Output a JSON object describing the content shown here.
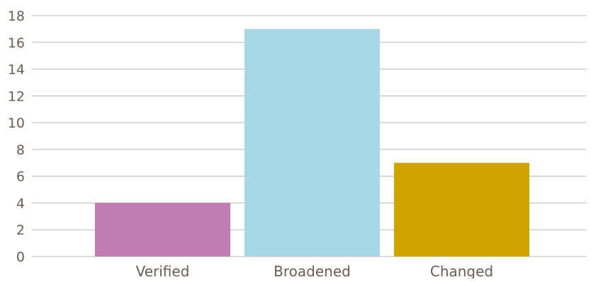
{
  "chart_data": {
    "type": "bar",
    "categories": [
      "Verified",
      "Broadened",
      "Changed"
    ],
    "values": [
      4,
      17,
      7
    ],
    "colors": [
      "#bf7db3",
      "#a8d8e6",
      "#cfa400"
    ],
    "ylim": [
      0,
      18
    ],
    "yticks": [
      0,
      2,
      4,
      6,
      8,
      10,
      12,
      14,
      16,
      18
    ],
    "grid": true,
    "legend": "none",
    "title": "",
    "xlabel": "",
    "ylabel": ""
  }
}
